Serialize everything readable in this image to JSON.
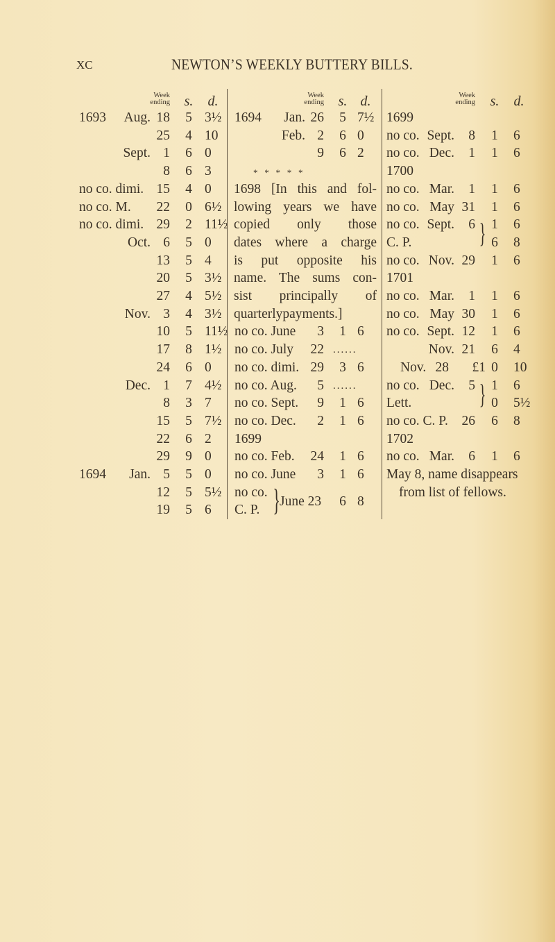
{
  "page": {
    "folio": "XC",
    "title": "NEWTON’S WEEKLY BUTTERY BILLS."
  },
  "headers": {
    "week_ending_1": "Week",
    "week_ending_2": "ending",
    "s": "s.",
    "d": "d."
  },
  "column1": [
    [
      "1693",
      "Aug.",
      "18",
      "5",
      "3½"
    ],
    [
      "",
      "",
      "25",
      "4",
      "10"
    ],
    [
      "",
      "Sept.",
      "1",
      "6",
      "0"
    ],
    [
      "",
      "",
      "8",
      "6",
      "3"
    ],
    [
      "no co. dimi.",
      "",
      "15",
      "4",
      "0"
    ],
    [
      "no co. M.",
      "",
      "22",
      "0",
      "6½"
    ],
    [
      "no co. dimi.",
      "",
      "29",
      "2",
      "11½"
    ],
    [
      "",
      "Oct.",
      "6",
      "5",
      "0"
    ],
    [
      "",
      "",
      "13",
      "5",
      "4"
    ],
    [
      "",
      "",
      "20",
      "5",
      "3½"
    ],
    [
      "",
      "",
      "27",
      "4",
      "5½"
    ],
    [
      "",
      "Nov.",
      "3",
      "4",
      "3½"
    ],
    [
      "",
      "",
      "10",
      "5",
      "11½"
    ],
    [
      "",
      "",
      "17",
      "8",
      "1½"
    ],
    [
      "",
      "",
      "24",
      "6",
      "0"
    ],
    [
      "",
      "Dec.",
      "1",
      "7",
      "4½"
    ],
    [
      "",
      "",
      "8",
      "3",
      "7"
    ],
    [
      "",
      "",
      "15",
      "5",
      "7½"
    ],
    [
      "",
      "",
      "22",
      "6",
      "2"
    ],
    [
      "",
      "",
      "29",
      "9",
      "0"
    ],
    [
      "1694",
      "Jan.",
      "5",
      "5",
      "0"
    ],
    [
      "",
      "",
      "12",
      "5",
      "5½"
    ],
    [
      "",
      "",
      "19",
      "5",
      "6"
    ]
  ],
  "column2": {
    "top_rows": [
      [
        "1694",
        "Jan.",
        "26",
        "5",
        "7½"
      ],
      [
        "",
        "Feb.",
        "2",
        "6",
        "0"
      ],
      [
        "",
        "",
        "9",
        "6",
        "2"
      ]
    ],
    "stars": "*   *   *   *   *",
    "paragraph": [
      "1698 [In this and fol-",
      "lowing years we have",
      "copied only those",
      "dates where a charge",
      "is put opposite his",
      "name. The sums con-",
      "sist principally of",
      "quarterlypayments.]"
    ],
    "rows": [
      [
        "no co. June",
        "3",
        "1",
        "6"
      ],
      [
        "no co. July",
        "22",
        "......",
        ""
      ],
      [
        "no co. dimi.",
        "29",
        "3",
        "6"
      ],
      [
        "no co. Aug.",
        "5",
        "......",
        ""
      ],
      [
        "no co. Sept.",
        "9",
        "1",
        "6"
      ],
      [
        "no co. Dec.",
        "2",
        "1",
        "6"
      ],
      [
        "1699",
        "",
        "",
        ""
      ],
      [
        "no co. Feb.",
        "24",
        "1",
        "6"
      ],
      [
        "no co. June",
        "3",
        "1",
        "6"
      ]
    ],
    "bracket": {
      "lines": [
        "no co.",
        "C. P."
      ],
      "date": "June 23",
      "s": "6",
      "d": "8"
    }
  },
  "column3": [
    {
      "prefix": "1699"
    },
    {
      "prefix": "no co.",
      "month": "Sept.",
      "day": "8",
      "s": "1",
      "d": "6"
    },
    {
      "prefix": "no co.",
      "month": "Dec.",
      "day": "1",
      "s": "1",
      "d": "6"
    },
    {
      "prefix": "1700"
    },
    {
      "prefix": "no co.",
      "month": "Mar.",
      "day": "1",
      "s": "1",
      "d": "6"
    },
    {
      "prefix": "no co.",
      "month": "May",
      "day": "31",
      "s": "1",
      "d": "6"
    },
    {
      "prefix": "no co.",
      "month": "Sept.",
      "day": "6",
      "s": "1",
      "d": "6",
      "brace": true
    },
    {
      "prefix": "C. P.",
      "s": "6",
      "d": "8"
    },
    {
      "prefix": "no co.",
      "month": "Nov.",
      "day": "29",
      "s": "1",
      "d": "6"
    },
    {
      "prefix": "1701"
    },
    {
      "prefix": "no co.",
      "month": "Mar.",
      "day": "1",
      "s": "1",
      "d": "6"
    },
    {
      "prefix": "no co.",
      "month": "May",
      "day": "30",
      "s": "1",
      "d": "6"
    },
    {
      "prefix": "no co.",
      "month": "Sept.",
      "day": "12",
      "s": "1",
      "d": "6"
    },
    {
      "month": "Nov.",
      "day": "21",
      "s": "6",
      "d": "4"
    },
    {
      "month": "Nov.",
      "day": "28",
      "pound": "£1",
      "s": "0",
      "d": "10"
    },
    {
      "prefix": "no co.",
      "month": "Dec.",
      "day": "5",
      "s": "1",
      "d": "6",
      "brace": true
    },
    {
      "prefix": "Lett.",
      "s": "0",
      "d": "5½"
    },
    {
      "prefix": "no co. C. P.",
      "day": "26",
      "s": "6",
      "d": "8"
    },
    {
      "prefix": "1702"
    },
    {
      "prefix": "no co.",
      "month": "Mar.",
      "day": "6",
      "s": "1",
      "d": "6"
    }
  ],
  "column3_note": [
    "May 8, name disappears",
    "from list of fellows."
  ]
}
